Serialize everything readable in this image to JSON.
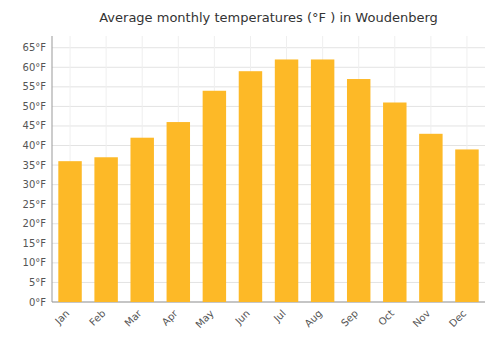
{
  "chart_data": {
    "type": "bar",
    "title": "Average monthly temperatures (°F ) in Woudenberg",
    "categories": [
      "Jan",
      "Feb",
      "Mar",
      "Apr",
      "May",
      "Jun",
      "Jul",
      "Aug",
      "Sep",
      "Oct",
      "Nov",
      "Dec"
    ],
    "values": [
      36,
      37,
      42,
      46,
      54,
      59,
      62,
      62,
      57,
      51,
      43,
      39
    ],
    "color": "#FDB927",
    "ylim": [
      0,
      68
    ],
    "yticks": [
      {
        "value": 0,
        "label": "0°F"
      },
      {
        "value": 5,
        "label": "5°F"
      },
      {
        "value": 10,
        "label": "10°F"
      },
      {
        "value": 15,
        "label": "15°F"
      },
      {
        "value": 20,
        "label": "20°F"
      },
      {
        "value": 25,
        "label": "25°F"
      },
      {
        "value": 30,
        "label": "30°F"
      },
      {
        "value": 35,
        "label": "35°F"
      },
      {
        "value": 40,
        "label": "40°F"
      },
      {
        "value": 45,
        "label": "45°F"
      },
      {
        "value": 50,
        "label": "50°F"
      },
      {
        "value": 55,
        "label": "55°F"
      },
      {
        "value": 60,
        "label": "60°F"
      },
      {
        "value": 65,
        "label": "65°F"
      }
    ],
    "grid": true
  }
}
